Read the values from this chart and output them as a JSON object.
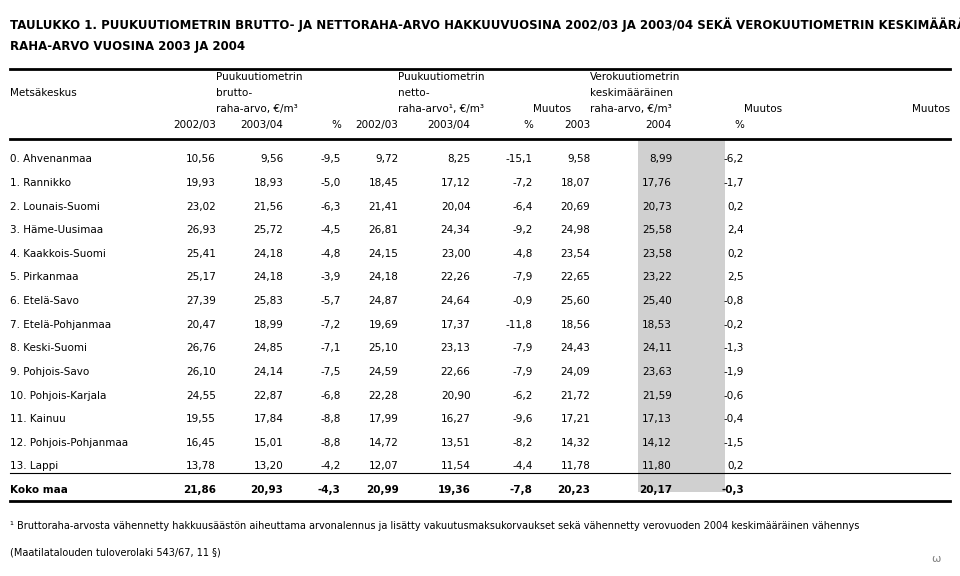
{
  "title_line1": "TAULUKKO 1. PUUKUUTIOMETRIN BRUTTO- JA NETTORAHA-ARVO HAKKUUVUOSINA 2002/03 JA 2003/04 SEKÄ VEROKUUTIOMETRIN KESKIMÄÄRÄINEN",
  "title_line2": "RAHA-ARVO VUOSINA 2003 JA 2004",
  "col_headers_row1": [
    "",
    "Puukuutiometrin",
    "",
    "",
    "Puukuutiometrin",
    "",
    "",
    "Verokuutiometrin",
    "",
    ""
  ],
  "col_headers_row2": [
    "Metsäkeskus",
    "brutto-",
    "",
    "",
    "netto-",
    "",
    "",
    "keskimääräinen",
    "",
    ""
  ],
  "col_headers_row3": [
    "",
    "raha-arvo, €/m³",
    "",
    "Muutos",
    "raha-arvo¹, €/m³",
    "",
    "Muutos",
    "raha-arvo, €/m³",
    "",
    "Muutos"
  ],
  "col_headers_row4": [
    "",
    "2002/03",
    "2003/04",
    "%",
    "2002/03",
    "2003/04",
    "%",
    "2003",
    "2004",
    "%"
  ],
  "rows": [
    [
      "0. Ahvenanmaa",
      "10,56",
      "9,56",
      "-9,5",
      "9,72",
      "8,25",
      "-15,1",
      "9,58",
      "8,99",
      "-6,2"
    ],
    [
      "1. Rannikko",
      "19,93",
      "18,93",
      "-5,0",
      "18,45",
      "17,12",
      "-7,2",
      "18,07",
      "17,76",
      "-1,7"
    ],
    [
      "2. Lounais-Suomi",
      "23,02",
      "21,56",
      "-6,3",
      "21,41",
      "20,04",
      "-6,4",
      "20,69",
      "20,73",
      "0,2"
    ],
    [
      "3. Häme-Uusimaa",
      "26,93",
      "25,72",
      "-4,5",
      "26,81",
      "24,34",
      "-9,2",
      "24,98",
      "25,58",
      "2,4"
    ],
    [
      "4. Kaakkois-Suomi",
      "25,41",
      "24,18",
      "-4,8",
      "24,15",
      "23,00",
      "-4,8",
      "23,54",
      "23,58",
      "0,2"
    ],
    [
      "5. Pirkanmaa",
      "25,17",
      "24,18",
      "-3,9",
      "24,18",
      "22,26",
      "-7,9",
      "22,65",
      "23,22",
      "2,5"
    ],
    [
      "6. Etelä-Savo",
      "27,39",
      "25,83",
      "-5,7",
      "24,87",
      "24,64",
      "-0,9",
      "25,60",
      "25,40",
      "-0,8"
    ],
    [
      "7. Etelä-Pohjanmaa",
      "20,47",
      "18,99",
      "-7,2",
      "19,69",
      "17,37",
      "-11,8",
      "18,56",
      "18,53",
      "-0,2"
    ],
    [
      "8. Keski-Suomi",
      "26,76",
      "24,85",
      "-7,1",
      "25,10",
      "23,13",
      "-7,9",
      "24,43",
      "24,11",
      "-1,3"
    ],
    [
      "9. Pohjois-Savo",
      "26,10",
      "24,14",
      "-7,5",
      "24,59",
      "22,66",
      "-7,9",
      "24,09",
      "23,63",
      "-1,9"
    ],
    [
      "10. Pohjois-Karjala",
      "24,55",
      "22,87",
      "-6,8",
      "22,28",
      "20,90",
      "-6,2",
      "21,72",
      "21,59",
      "-0,6"
    ],
    [
      "11. Kainuu",
      "19,55",
      "17,84",
      "-8,8",
      "17,99",
      "16,27",
      "-9,6",
      "17,21",
      "17,13",
      "-0,4"
    ],
    [
      "12. Pohjois-Pohjanmaa",
      "16,45",
      "15,01",
      "-8,8",
      "14,72",
      "13,51",
      "-8,2",
      "14,32",
      "14,12",
      "-1,5"
    ],
    [
      "13. Lappi",
      "13,78",
      "13,20",
      "-4,2",
      "12,07",
      "11,54",
      "-4,4",
      "11,78",
      "11,80",
      "0,2"
    ],
    [
      "Koko maa",
      "21,86",
      "20,93",
      "-4,3",
      "20,99",
      "19,36",
      "-7,8",
      "20,23",
      "20,17",
      "-0,3"
    ]
  ],
  "footnote_line1": "¹ Bruttoraha-arvosta vähennetty hakkuusäästön aiheuttama arvonalennus ja lisätty vakuutusmaksukorvaukset sekä vähennetty verovuoden 2004 keskimääräinen vähennys",
  "footnote_line2": "(Maatilatalouden tuloverolaki 543/67, 11 §)",
  "highlight_col": 8,
  "bg_color": "#ffffff",
  "header_bg": "#ffffff",
  "highlight_bg": "#d0d0d0",
  "title_fontsize": 8.5,
  "header_fontsize": 7.5,
  "data_fontsize": 7.5,
  "footnote_fontsize": 7.0
}
